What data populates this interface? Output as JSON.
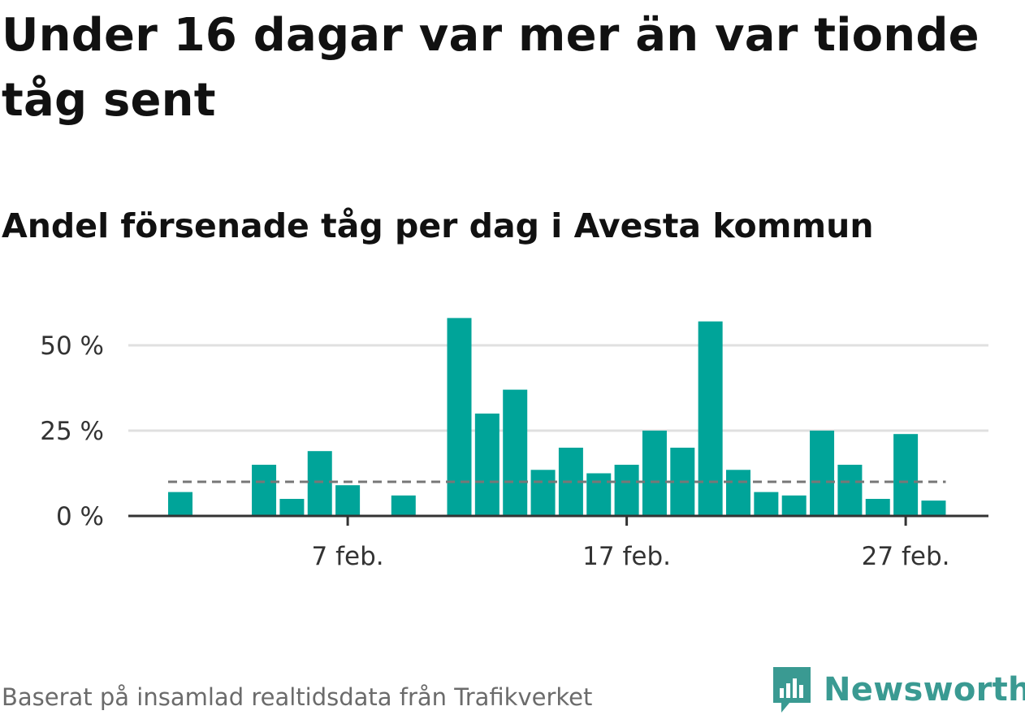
{
  "title": "Under 16 dagar var mer än var tionde tåg sent",
  "subtitle": "Andel försenade tåg per dag i Avesta kommun",
  "source": "Baserat på insamlad realtidsdata från Trafikverket",
  "logo": {
    "text": "Newsworthy",
    "icon": "newsworthy-logo-icon"
  },
  "colors": {
    "bar": "#00a499",
    "reference": "#777777",
    "grid": "#e0e0e0",
    "axis": "#333333",
    "logo": "#3a9a92"
  },
  "chart_data": {
    "type": "bar",
    "categories": [
      "1 feb.",
      "2 feb.",
      "3 feb.",
      "4 feb.",
      "5 feb.",
      "6 feb.",
      "7 feb.",
      "8 feb.",
      "9 feb.",
      "10 feb.",
      "11 feb.",
      "12 feb.",
      "13 feb.",
      "14 feb.",
      "15 feb.",
      "16 feb.",
      "17 feb.",
      "18 feb.",
      "19 feb.",
      "20 feb.",
      "21 feb.",
      "22 feb.",
      "23 feb.",
      "24 feb.",
      "25 feb.",
      "26 feb.",
      "27 feb.",
      "28 feb."
    ],
    "values": [
      7,
      0,
      0,
      15,
      5,
      19,
      9,
      0,
      6,
      0,
      58,
      30,
      37,
      13.5,
      20,
      12.5,
      15,
      25,
      20,
      57,
      13.5,
      7,
      6,
      25,
      15,
      5,
      24,
      4.5
    ],
    "reference_value": 10,
    "ylim": [
      0,
      62
    ],
    "y_ticks": [
      0,
      25,
      50
    ],
    "y_tick_labels": [
      "0 %",
      "25 %",
      "50 %"
    ],
    "x_tick_labels": [
      {
        "category": "7 feb.",
        "label": "7 feb."
      },
      {
        "category": "17 feb.",
        "label": "17 feb."
      },
      {
        "category": "27 feb.",
        "label": "27 feb."
      }
    ],
    "grid": true,
    "legend": "none"
  }
}
